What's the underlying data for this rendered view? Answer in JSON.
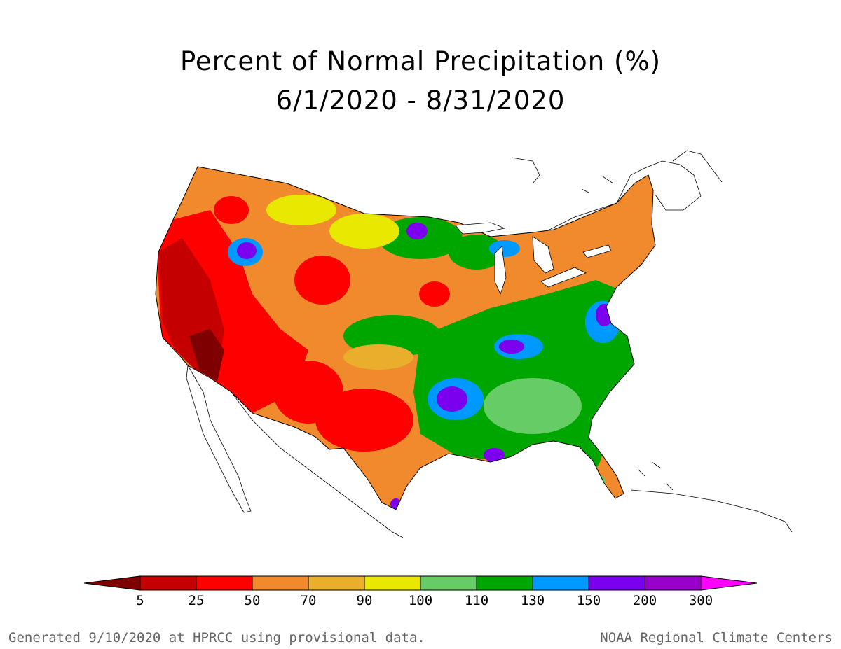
{
  "title": {
    "line1": "Percent of Normal Precipitation (%)",
    "line2": "6/1/2020 - 8/31/2020"
  },
  "legend": {
    "bins": [
      {
        "color": "#7f0000"
      },
      {
        "color": "#c40000"
      },
      {
        "color": "#ff0000"
      },
      {
        "color": "#f08a2c"
      },
      {
        "color": "#e8ae2c"
      },
      {
        "color": "#e8e800"
      },
      {
        "color": "#66cc66"
      },
      {
        "color": "#00a600"
      },
      {
        "color": "#0099ff"
      },
      {
        "color": "#7a00ee"
      },
      {
        "color": "#9900cc"
      },
      {
        "color": "#ff00ff"
      }
    ],
    "labels": [
      "5",
      "25",
      "50",
      "70",
      "90",
      "100",
      "110",
      "130",
      "150",
      "200",
      "300"
    ]
  },
  "footer": {
    "left": "Generated 9/10/2020 at HPRCC using provisional data.",
    "right": "NOAA Regional Climate Centers"
  }
}
